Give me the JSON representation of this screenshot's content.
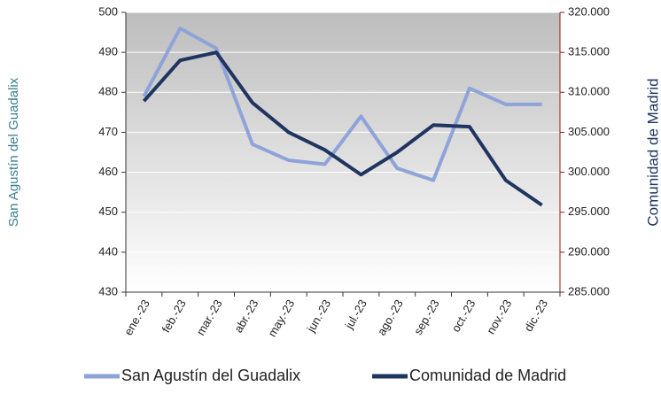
{
  "chart_data": {
    "type": "line",
    "categories": [
      "ene.-23",
      "feb.-23",
      "mar.-23",
      "abr.-23",
      "may.-23",
      "jun.-23",
      "jul.-23",
      "ago.-23",
      "sep.-23",
      "oct.-23",
      "nov.-23",
      "dic.-23"
    ],
    "ylabel": "San Agustín del Guadalix",
    "y2label": "Comunidad  de Madrid",
    "ylim": [
      430,
      500
    ],
    "yticks": [
      430,
      440,
      450,
      460,
      470,
      480,
      490,
      500
    ],
    "y2lim": [
      285000,
      320000
    ],
    "y2ticks": [
      {
        "value": 285000,
        "label": "285.000"
      },
      {
        "value": 290000,
        "label": "290.000"
      },
      {
        "value": 295000,
        "label": "295.000"
      },
      {
        "value": 300000,
        "label": "300.000"
      },
      {
        "value": 305000,
        "label": "305.000"
      },
      {
        "value": 310000,
        "label": "310.000"
      },
      {
        "value": 315000,
        "label": "315.000"
      },
      {
        "value": 320000,
        "label": "320.000"
      }
    ],
    "grid": true,
    "legend": "bottom",
    "series": [
      {
        "name": "San Agustín del Guadalix",
        "color": "#8ea3d9",
        "values": [
          479,
          496,
          491,
          467,
          463,
          462,
          474,
          461,
          458,
          481,
          477,
          477
        ]
      },
      {
        "name": "Comunidad de Madrid",
        "color": "#1f3560",
        "axis": "y2",
        "values": [
          308900,
          314000,
          315000,
          308700,
          305000,
          302800,
          299700,
          302500,
          305900,
          305700,
          299000,
          295900
        ]
      }
    ]
  }
}
